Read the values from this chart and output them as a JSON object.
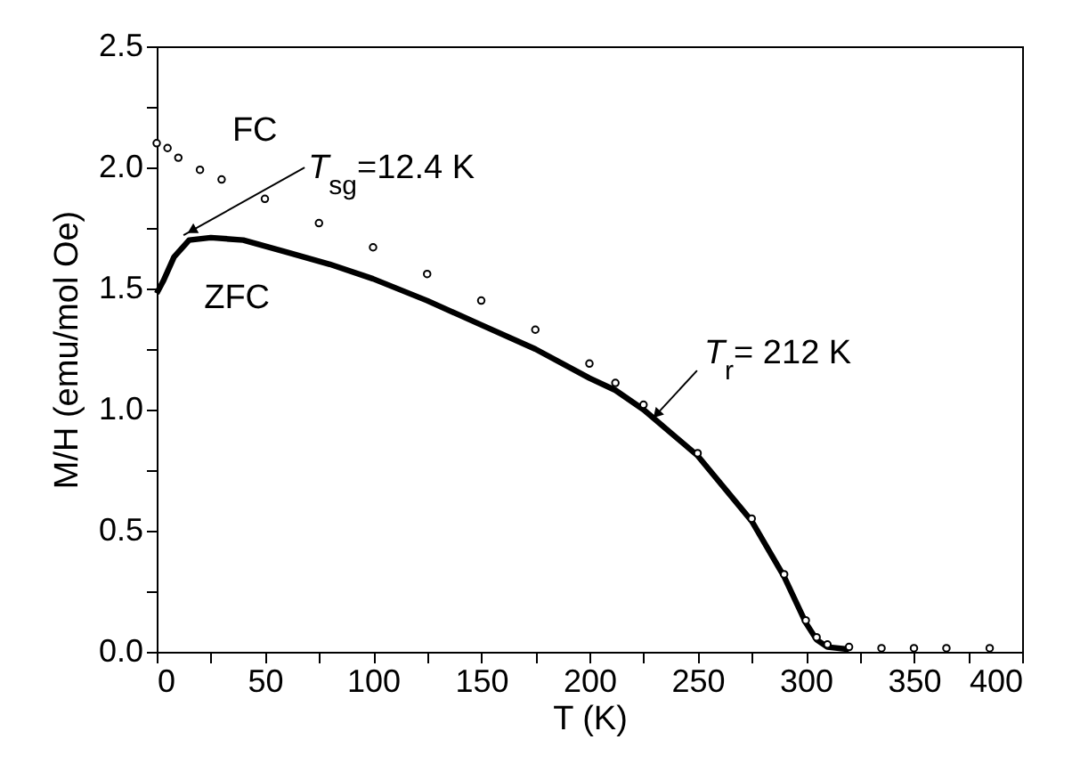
{
  "chart_data": {
    "type": "scatter",
    "xlabel": "T (K)",
    "ylabel": "M/H (emu/mol Oe)",
    "xlim": [
      0,
      400
    ],
    "ylim": [
      0,
      2.5
    ],
    "xticks": [
      0,
      {
        "value": 25,
        "label": null
      },
      50,
      {
        "value": 75,
        "label": null
      },
      100,
      {
        "value": 125,
        "label": null
      },
      150,
      {
        "value": 175,
        "label": null
      },
      200,
      {
        "value": 225,
        "label": null
      },
      250,
      {
        "value": 275,
        "label": null
      },
      300,
      {
        "value": 325,
        "label": null
      },
      350,
      {
        "value": 375,
        "label": null
      },
      400
    ],
    "yticks": [
      {
        "value": 0,
        "label": "0.0"
      },
      {
        "value": 0.25,
        "label": null
      },
      {
        "value": 0.5,
        "label": "0.5"
      },
      {
        "value": 0.75,
        "label": null
      },
      {
        "value": 1,
        "label": "1.0"
      },
      {
        "value": 1.25,
        "label": null
      },
      {
        "value": 1.5,
        "label": "1.5"
      },
      {
        "value": 1.75,
        "label": null
      },
      {
        "value": 2,
        "label": "2.0"
      },
      {
        "value": 2.25,
        "label": null
      },
      {
        "value": 2.5,
        "label": "2.5"
      }
    ],
    "grid": false,
    "series": [
      {
        "name": "FC",
        "type": "scatter",
        "marker": "circle",
        "color": "#000000",
        "x": [
          0,
          5,
          10,
          20,
          30,
          50,
          75,
          100,
          125,
          150,
          175,
          200,
          212,
          225,
          250,
          275,
          290,
          300,
          305,
          310,
          320,
          335,
          350,
          365,
          385
        ],
        "values": [
          2.1,
          2.08,
          2.04,
          1.99,
          1.95,
          1.87,
          1.77,
          1.67,
          1.56,
          1.45,
          1.33,
          1.19,
          1.11,
          1.02,
          0.82,
          0.55,
          0.32,
          0.13,
          0.06,
          0.03,
          0.02,
          0.015,
          0.015,
          0.015,
          0.015
        ]
      },
      {
        "name": "ZFC",
        "type": "line",
        "marker": "none",
        "color": "#000000",
        "x": [
          0,
          3,
          8,
          15,
          25,
          40,
          60,
          80,
          100,
          125,
          150,
          175,
          200,
          212,
          225,
          250,
          275,
          290,
          300,
          305,
          310,
          320
        ],
        "values": [
          1.48,
          1.53,
          1.63,
          1.7,
          1.71,
          1.7,
          1.65,
          1.6,
          1.54,
          1.45,
          1.35,
          1.25,
          1.13,
          1.08,
          1.0,
          0.81,
          0.54,
          0.31,
          0.12,
          0.05,
          0.02,
          0.01
        ]
      }
    ],
    "annotations": [
      {
        "text": "T$_{sg}$=12.4 K",
        "x": 12.4,
        "y": 1.72
      },
      {
        "text": "T$_{r}$= 212 K",
        "x": 230,
        "y": 0.97
      }
    ]
  }
}
